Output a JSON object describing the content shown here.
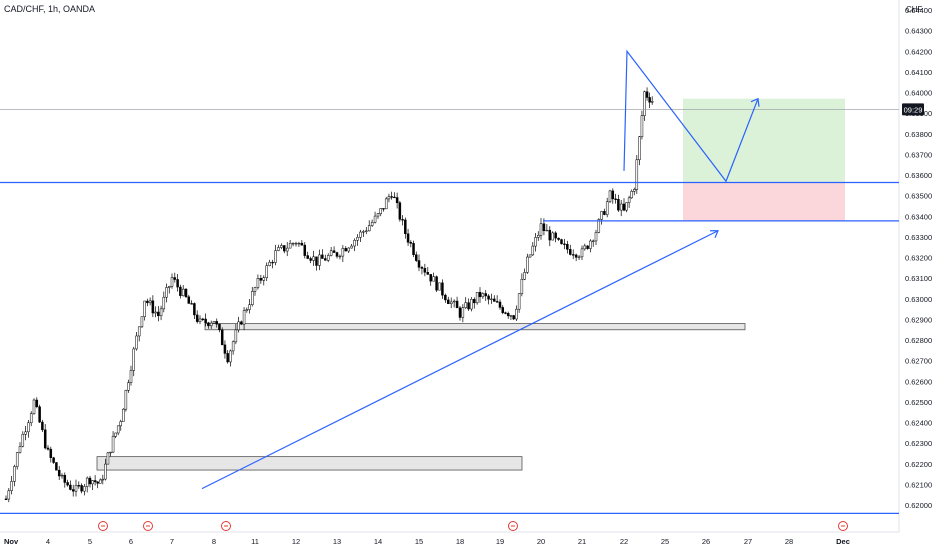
{
  "symbol_title": "CAD/CHF, 1h, OANDA",
  "price_axis": {
    "currency": "CHF",
    "ticks": [
      "0.64400",
      "0.64300",
      "0.64200",
      "0.64100",
      "0.64000",
      "0.63900",
      "0.63800",
      "0.63700",
      "0.63600",
      "0.63500",
      "0.63400",
      "0.63300",
      "0.63200",
      "0.63100",
      "0.63000",
      "0.62900",
      "0.62800",
      "0.62700",
      "0.62600",
      "0.62500",
      "0.62400",
      "0.62300",
      "0.62200",
      "0.62100",
      "0.62000"
    ],
    "last_price_label": "09:29"
  },
  "time_axis": {
    "labels": [
      "Nov",
      "4",
      "5",
      "6",
      "7",
      "8",
      "11",
      "12",
      "13",
      "14",
      "15",
      "18",
      "19",
      "20",
      "21",
      "22",
      "25",
      "26",
      "27",
      "28",
      "Dec"
    ]
  },
  "colors": {
    "up_candle": "#ffffff",
    "down_candle": "#000000",
    "candle_outline": "#000000",
    "drawing_line": "#2962ff",
    "zone_fill": "#e6e6e6",
    "target_fill": "#d7efd4",
    "stop_fill": "#fbd3d8",
    "event_marker": "#e53935"
  },
  "chart_data": {
    "type": "candlestick",
    "instrument": "CAD/CHF",
    "timeframe": "1h",
    "ylim": [
      0.6195,
      0.6447
    ],
    "series_close_path": [
      [
        "Nov 1",
        0.6203
      ],
      [
        "Nov 1",
        0.623
      ],
      [
        "Nov 1",
        0.625
      ],
      [
        "Nov 4",
        0.6225
      ],
      [
        "Nov 4",
        0.6212
      ],
      [
        "Nov 4",
        0.6207
      ],
      [
        "Nov 5",
        0.6213
      ],
      [
        "Nov 5",
        0.621
      ],
      [
        "Nov 5",
        0.6228
      ],
      [
        "Nov 5",
        0.6242
      ],
      [
        "Nov 6",
        0.6268
      ],
      [
        "Nov 6",
        0.63
      ],
      [
        "Nov 6",
        0.6292
      ],
      [
        "Nov 7",
        0.631
      ],
      [
        "Nov 7",
        0.63
      ],
      [
        "Nov 7",
        0.6288
      ],
      [
        "Nov 8",
        0.629
      ],
      [
        "Nov 8",
        0.6272
      ],
      [
        "Nov 8",
        0.629
      ],
      [
        "Nov 11",
        0.6305
      ],
      [
        "Nov 11",
        0.6322
      ],
      [
        "Nov 12",
        0.6328
      ],
      [
        "Nov 12",
        0.6318
      ],
      [
        "Nov 13",
        0.6322
      ],
      [
        "Nov 13",
        0.633
      ],
      [
        "Nov 14",
        0.634
      ],
      [
        "Nov 14",
        0.6352
      ],
      [
        "Nov 14",
        0.6332
      ],
      [
        "Nov 15",
        0.6318
      ],
      [
        "Nov 15",
        0.6305
      ],
      [
        "Nov 18",
        0.6293
      ],
      [
        "Nov 18",
        0.6302
      ],
      [
        "Nov 19",
        0.6296
      ],
      [
        "Nov 19",
        0.6292
      ],
      [
        "Nov 19",
        0.6318
      ],
      [
        "Nov 20",
        0.6335
      ],
      [
        "Nov 20",
        0.6325
      ],
      [
        "Nov 21",
        0.6322
      ],
      [
        "Nov 21",
        0.6333
      ],
      [
        "Nov 21",
        0.635
      ],
      [
        "Nov 22",
        0.6342
      ],
      [
        "Nov 22",
        0.6355
      ],
      [
        "Nov 22",
        0.64
      ],
      [
        "Nov 22",
        0.6395
      ]
    ],
    "horizontal_lines": [
      0.63564,
      0.63378,
      0.6196
    ],
    "zones": [
      {
        "name": "demand zone upper",
        "from": 0.6288,
        "to": 0.6285
      },
      {
        "name": "demand zone lower",
        "from": 0.62235,
        "to": 0.6217
      }
    ],
    "trendline": {
      "from": [
        "Nov 8",
        0.6208
      ],
      "to": [
        "Nov 25",
        0.6333
      ]
    },
    "triangle_path": [
      [
        "Nov 22",
        0.6362
      ],
      [
        "Nov 22",
        0.642
      ],
      [
        "Nov 26",
        0.6357
      ],
      [
        "Nov 27",
        0.6397
      ]
    ],
    "long_position": {
      "entry": 0.63564,
      "stop": 0.63378,
      "target": 0.6397
    },
    "last_price": 0.63918,
    "event_markers": [
      "Nov 5",
      "Nov 6",
      "Nov 8",
      "Nov 19",
      "Dec"
    ]
  }
}
